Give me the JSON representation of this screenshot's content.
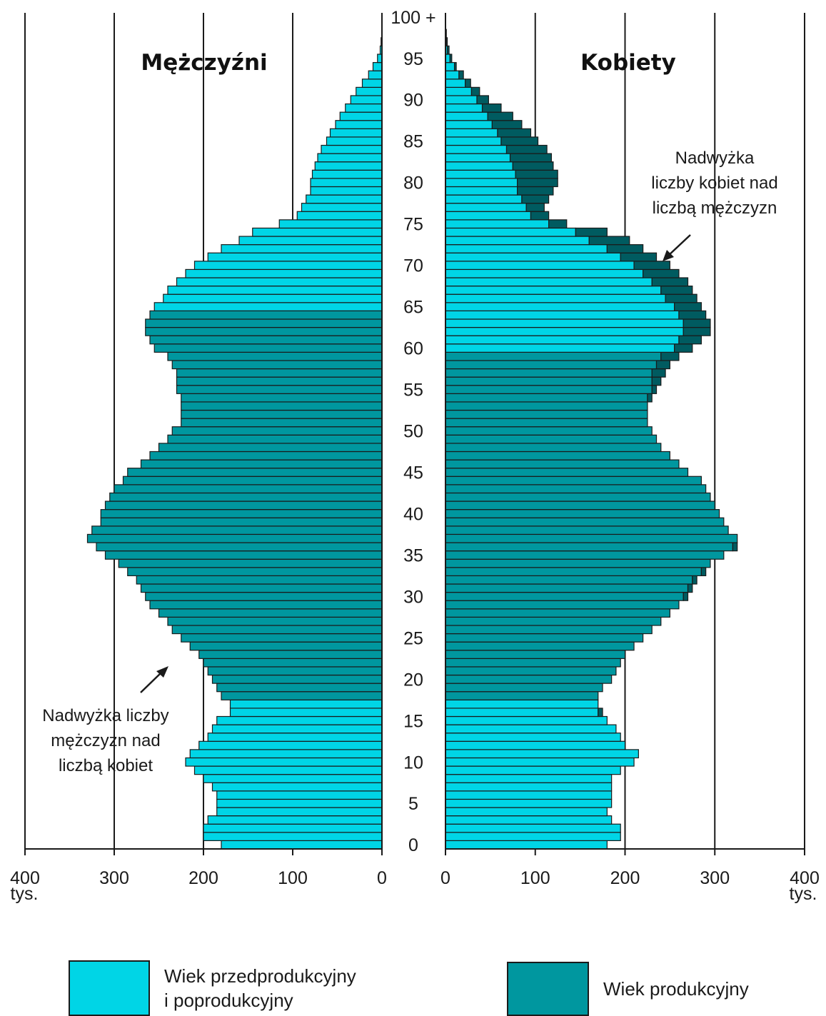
{
  "chart_data": {
    "type": "bar",
    "subtype": "population-pyramid",
    "panels": {
      "left": "Mężczyźni",
      "right": "Kobiety"
    },
    "x_ticks": [
      "400",
      "300",
      "200",
      "100",
      "0"
    ],
    "x_ticks_right": [
      "0",
      "100",
      "200",
      "300",
      "400"
    ],
    "x_unit": "tys.",
    "xlim": [
      0,
      400
    ],
    "age_ticks": [
      "100 +",
      "95",
      "90",
      "85",
      "80",
      "75",
      "70",
      "65",
      "60",
      "55",
      "50",
      "45",
      "40",
      "35",
      "30",
      "25",
      "20",
      "15",
      "10",
      "5",
      "0"
    ],
    "age_groups": [
      0,
      100
    ],
    "working_age_range": {
      "men": [
        18,
        64
      ],
      "women": [
        18,
        59
      ]
    },
    "men": [
      180,
      200,
      200,
      195,
      185,
      185,
      185,
      190,
      200,
      210,
      220,
      215,
      205,
      195,
      190,
      185,
      170,
      170,
      180,
      185,
      190,
      195,
      200,
      205,
      215,
      225,
      235,
      240,
      250,
      260,
      265,
      270,
      275,
      285,
      295,
      310,
      320,
      330,
      325,
      315,
      315,
      310,
      305,
      300,
      290,
      285,
      270,
      260,
      250,
      240,
      235,
      225,
      225,
      225,
      225,
      230,
      230,
      230,
      235,
      240,
      255,
      260,
      265,
      265,
      260,
      255,
      245,
      240,
      230,
      220,
      210,
      195,
      180,
      160,
      145,
      115,
      95,
      90,
      85,
      80,
      80,
      78,
      75,
      72,
      68,
      62,
      58,
      52,
      47,
      41,
      35,
      29,
      22,
      15,
      10,
      5,
      2,
      1,
      0,
      0,
      0
    ],
    "women": [
      180,
      195,
      195,
      185,
      180,
      185,
      185,
      185,
      185,
      195,
      210,
      215,
      200,
      195,
      190,
      180,
      175,
      170,
      170,
      175,
      185,
      190,
      195,
      200,
      210,
      220,
      230,
      240,
      250,
      260,
      270,
      275,
      280,
      290,
      295,
      310,
      325,
      325,
      315,
      310,
      305,
      300,
      295,
      290,
      285,
      270,
      260,
      250,
      240,
      235,
      230,
      225,
      225,
      225,
      230,
      235,
      240,
      245,
      250,
      260,
      275,
      285,
      295,
      295,
      290,
      285,
      280,
      275,
      270,
      260,
      250,
      235,
      220,
      205,
      180,
      135,
      115,
      110,
      115,
      120,
      125,
      125,
      120,
      118,
      113,
      103,
      95,
      85,
      75,
      62,
      48,
      38,
      28,
      20,
      12,
      7,
      4,
      2,
      1,
      0,
      0
    ],
    "excess_note_women": "Nadwyżka\nliczby kobiet nad\nliczbą mężczyzn",
    "excess_note_men": "Nadwyżka liczby\nmężczyzn nad\nliczbą kobiet",
    "colors": {
      "non_working": "#00d5e6",
      "working": "#00979f",
      "excess": "#005b60",
      "outline": "#1a1a1a"
    },
    "legend": [
      {
        "label": "Wiek przedprodukcyjny\ni poprodukcyjny",
        "color": "#00d5e6"
      },
      {
        "label": "Wiek produkcyjny",
        "color": "#00979f"
      }
    ],
    "grid": true
  }
}
